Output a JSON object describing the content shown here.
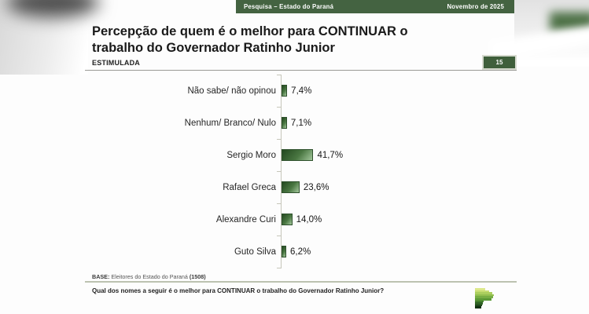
{
  "header": {
    "left": "Pesquisa – Estado do Paraná",
    "right": "Novembro de 2025"
  },
  "page_number": "15",
  "title": {
    "line1": "Percepção de quem é o melhor para CONTINUAR o",
    "line2": "trabalho do Governador Ratinho Junior",
    "subtitle": "ESTIMULADA"
  },
  "chart_data": {
    "type": "bar",
    "orientation": "horizontal",
    "categories": [
      "Não sabe/ não opinou",
      "Nenhum/ Branco/ Nulo",
      "Sergio Moro",
      "Rafael Greca",
      "Alexandre Curi",
      "Guto Silva"
    ],
    "values": [
      7.4,
      7.1,
      41.7,
      23.6,
      14.0,
      6.2
    ],
    "value_labels": [
      "7,4%",
      "7,1%",
      "41,7%",
      "23,6%",
      "14,0%",
      "6,2%"
    ],
    "title": "Percepção de quem é o melhor para CONTINUAR o trabalho do Governador Ratinho Junior (ESTIMULADA)",
    "xlabel": "",
    "ylabel": "",
    "xlim": [
      0,
      50
    ],
    "grid": false,
    "legend": "none",
    "bar_color_dark": "#23481f",
    "bar_color_light": "#a3c79c"
  },
  "footer": {
    "base_label": "BASE:",
    "base_text": " Eleitores do Estado do Paraná ",
    "base_count": "(1508)",
    "question": "Qual dos nomes a seguir é o melhor para CONTINUAR o trabalho do Governador Ratinho Junior?"
  },
  "branding": {
    "logo_icon": "parana-pesquisas-logo",
    "accent_green": "#446341"
  }
}
